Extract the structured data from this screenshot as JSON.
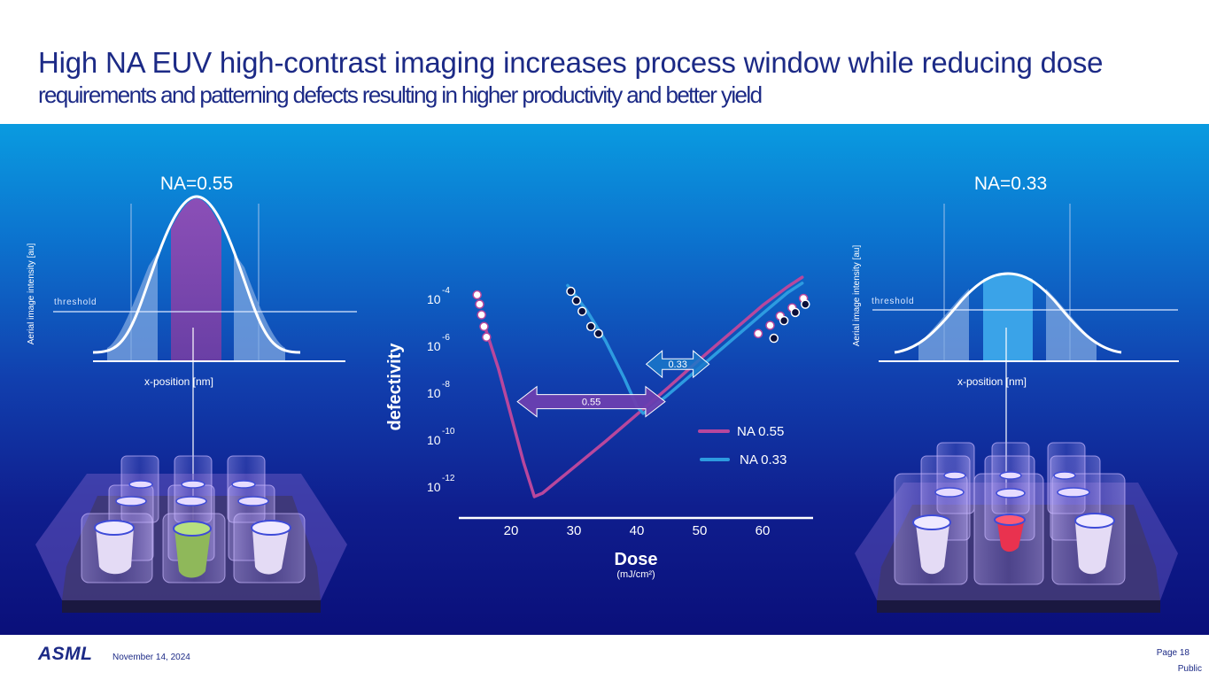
{
  "header": {
    "title": "High NA EUV high-contrast imaging increases process window while reducing dose",
    "subtitle": "requirements and patterning defects resulting in higher productivity and better yield"
  },
  "left_plot": {
    "title": "NA=0.55",
    "ylabel": "Aerial image intensity [au]",
    "xlabel": "x-position [nm]",
    "threshold_label": "threshold"
  },
  "right_plot": {
    "title": "NA=0.33",
    "ylabel": "Aerial image intensity [au]",
    "xlabel": "x-position [nm]",
    "threshold_label": "threshold"
  },
  "chart_data": {
    "type": "line",
    "xlabel": "Dose",
    "xunit": "(mJ/cm²)",
    "ylabel": "defectivity",
    "x_ticks": [
      "20",
      "30",
      "40",
      "50",
      "60"
    ],
    "y_ticks": [
      {
        "base": "10",
        "exp": "-4"
      },
      {
        "base": "10",
        "exp": "-6"
      },
      {
        "base": "10",
        "exp": "-8"
      },
      {
        "base": "10",
        "exp": "-10"
      },
      {
        "base": "10",
        "exp": "-12"
      }
    ],
    "xlim": [
      17,
      67
    ],
    "ylim_exponent": [
      -13,
      -3
    ],
    "series": [
      {
        "name": "NA 0.55",
        "color": "#b8479d",
        "x": [
          15.7,
          18,
          20,
          22,
          23.7,
          25,
          30,
          35,
          40,
          45,
          50,
          55,
          60,
          64,
          66.3
        ],
        "y": [
          -5.1,
          -7.0,
          -9.0,
          -11.0,
          -12.45,
          -12.3,
          -11.2,
          -10.1,
          -8.95,
          -7.8,
          -6.6,
          -5.45,
          -4.3,
          -3.5,
          -3.1
        ]
      },
      {
        "name": "NA 0.33",
        "color": "#2d9be0",
        "x": [
          29,
          32,
          35,
          38,
          40,
          41,
          42,
          45,
          50,
          55,
          60,
          64,
          66.3
        ],
        "y": [
          -3.45,
          -4.5,
          -5.8,
          -7.4,
          -8.6,
          -8.9,
          -8.75,
          -8.1,
          -6.95,
          -5.8,
          -4.65,
          -3.75,
          -3.35
        ]
      }
    ],
    "markers_white": [
      [
        14.6,
        -3.85
      ],
      [
        15,
        -4.25
      ],
      [
        15.3,
        -4.7
      ],
      [
        15.7,
        -5.2
      ],
      [
        16.1,
        -5.65
      ],
      [
        59.3,
        -5.5
      ],
      [
        61.2,
        -5.15
      ],
      [
        62.8,
        -4.75
      ],
      [
        64.7,
        -4.4
      ],
      [
        66.5,
        -4.0
      ]
    ],
    "markers_dark": [
      [
        29.5,
        -3.7
      ],
      [
        30.4,
        -4.1
      ],
      [
        31.3,
        -4.55
      ],
      [
        32.7,
        -5.2
      ],
      [
        33.9,
        -5.5
      ],
      [
        61.8,
        -5.7
      ],
      [
        63.4,
        -4.95
      ],
      [
        65.2,
        -4.6
      ],
      [
        66.8,
        -4.25
      ]
    ],
    "arrows": [
      {
        "label": "0.55",
        "x_from": 21,
        "x_to": 44.5,
        "y": -8.4
      },
      {
        "label": "0.33",
        "x_from": 41.5,
        "x_to": 51.5,
        "y": -6.8
      }
    ]
  },
  "footer": {
    "logo": "ASML",
    "date": "November 14, 2024",
    "page": "Page 18",
    "classification": "Public"
  }
}
